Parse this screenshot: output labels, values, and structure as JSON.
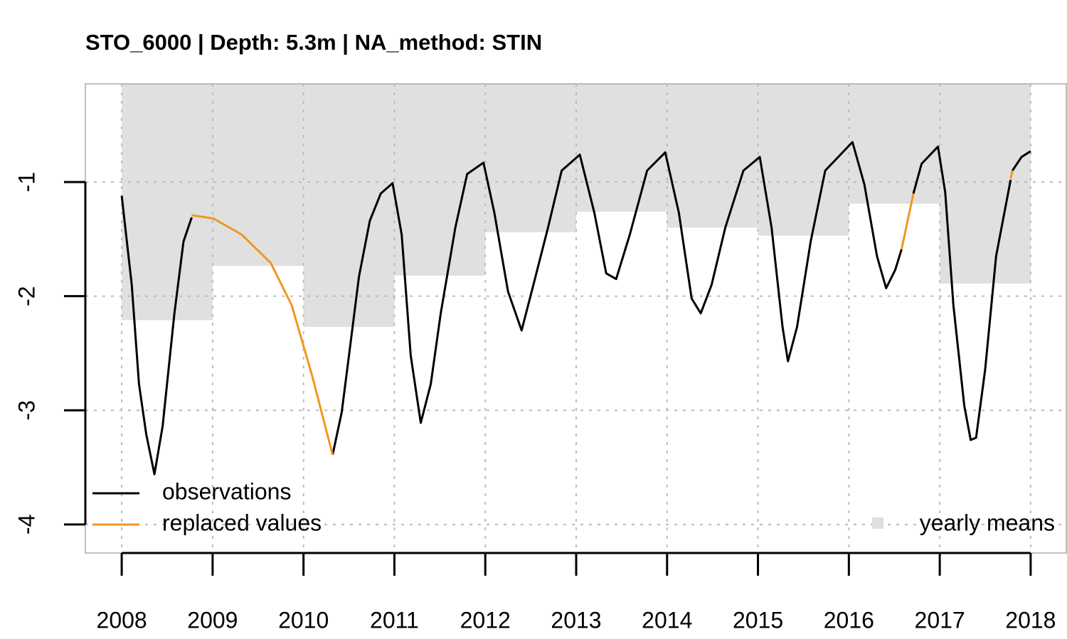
{
  "chart_data": {
    "type": "line",
    "title": "STO_6000 | Depth: 5.3m | NA_method: STIN",
    "xlim": [
      2007.6,
      2018.4
    ],
    "ylim": [
      -4.25,
      -0.14
    ],
    "xticks": [
      2008,
      2009,
      2010,
      2011,
      2012,
      2013,
      2014,
      2015,
      2016,
      2017,
      2018
    ],
    "yticks": [
      -4,
      -3,
      -2,
      -1
    ],
    "grid": true,
    "bars": {
      "name": "yearly means",
      "color": "#e0e0e0",
      "x": [
        2008,
        2009,
        2010,
        2011,
        2012,
        2013,
        2014,
        2015,
        2016,
        2017
      ],
      "values": [
        -2.21,
        -1.735,
        -2.27,
        -1.82,
        -1.44,
        -1.26,
        -1.4,
        -1.47,
        -1.19,
        -1.89
      ]
    },
    "series": [
      {
        "name": "observations",
        "color": "#000000",
        "x": [
          2008.0,
          2008.11,
          2008.19,
          2008.27,
          2008.36,
          2008.45,
          2008.58,
          2008.68,
          2008.77,
          null,
          2010.32,
          2010.42,
          2010.5,
          2010.61,
          2010.73,
          2010.85,
          2010.98,
          2011.08,
          2011.18,
          2011.29,
          2011.4,
          2011.51,
          2011.67,
          2011.8,
          2011.98,
          2012.1,
          2012.25,
          2012.4,
          2012.53,
          2012.69,
          2012.84,
          2013.04,
          2013.2,
          2013.33,
          2013.44,
          2013.59,
          2013.78,
          2013.98,
          2014.13,
          2014.27,
          2014.37,
          2014.49,
          2014.64,
          2014.84,
          2015.02,
          2015.15,
          2015.27,
          2015.33,
          2015.43,
          2015.58,
          2015.74,
          2016.04,
          2016.17,
          2016.31,
          2016.41,
          2016.51,
          2016.58,
          null,
          2016.71,
          2016.8,
          2016.98,
          2017.06,
          2017.15,
          2017.27,
          2017.34,
          2017.4,
          2017.5,
          2017.62,
          2017.78,
          null,
          2017.8,
          2017.9,
          2018.0
        ],
        "values": [
          -1.12,
          -1.9,
          -2.77,
          -3.21,
          -3.56,
          -3.14,
          -2.15,
          -1.52,
          -1.31,
          null,
          -3.39,
          -3.02,
          -2.52,
          -1.83,
          -1.34,
          -1.1,
          -1.01,
          -1.46,
          -2.52,
          -3.11,
          -2.77,
          -2.15,
          -1.4,
          -0.93,
          -0.83,
          -1.27,
          -1.96,
          -2.3,
          -1.9,
          -1.4,
          -0.9,
          -0.76,
          -1.27,
          -1.8,
          -1.85,
          -1.46,
          -0.9,
          -0.74,
          -1.27,
          -2.02,
          -2.15,
          -1.9,
          -1.4,
          -0.9,
          -0.78,
          -1.4,
          -2.27,
          -2.57,
          -2.27,
          -1.52,
          -0.9,
          -0.65,
          -1.02,
          -1.65,
          -1.93,
          -1.77,
          -1.59,
          null,
          -1.1,
          -0.84,
          -0.69,
          -1.09,
          -2.08,
          -2.96,
          -3.26,
          -3.24,
          -2.64,
          -1.65,
          -0.98,
          null,
          -0.9,
          -0.78,
          -0.73
        ]
      },
      {
        "name": "replaced values",
        "color": "#f0961e",
        "x": [
          2008.77,
          2009.01,
          2009.32,
          2009.64,
          2009.87,
          2010.1,
          2010.32,
          null,
          2016.58,
          2016.71,
          null,
          2017.78,
          2017.8
        ],
        "values": [
          -1.29,
          -1.32,
          -1.46,
          -1.71,
          -2.08,
          -2.71,
          -3.39,
          null,
          -1.59,
          -1.1,
          null,
          -0.97,
          -0.9
        ]
      }
    ]
  }
}
